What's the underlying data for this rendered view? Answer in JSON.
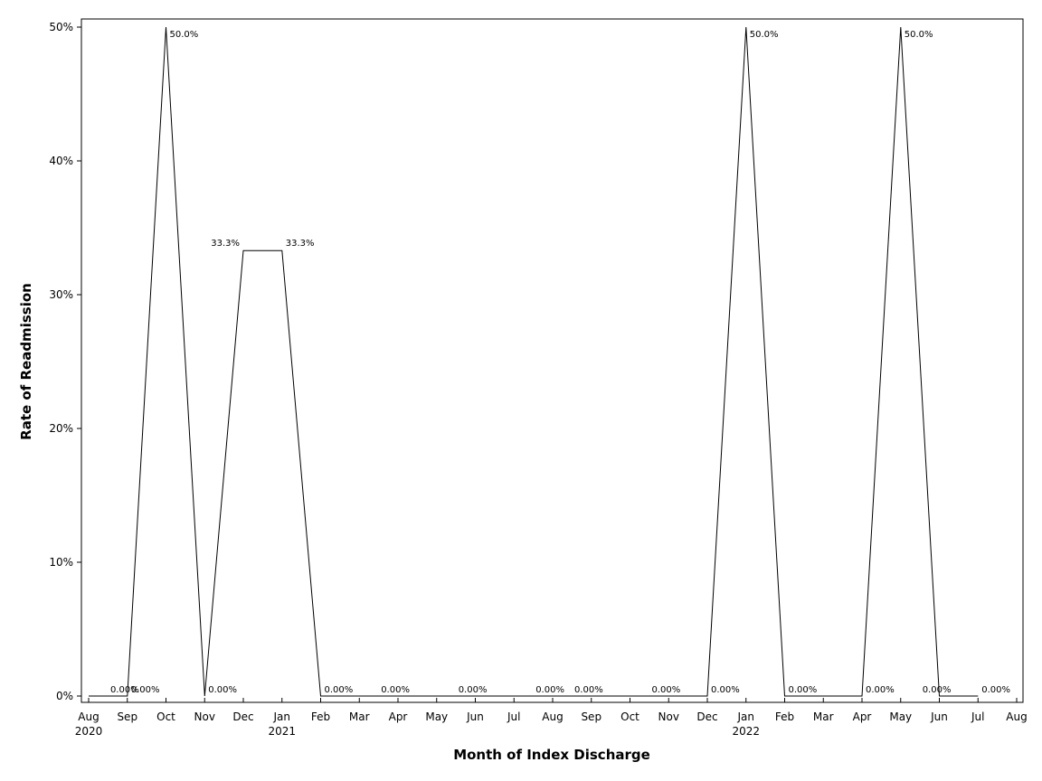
{
  "chart_data": {
    "type": "line",
    "title": "",
    "xlabel": "Month of Index Discharge",
    "ylabel": "Rate of Readmission",
    "ylim": [
      0,
      50
    ],
    "grid": false,
    "legend": "none",
    "line_color": "#000000",
    "x": [
      "2020-08",
      "2020-09",
      "2020-10",
      "2020-11",
      "2020-12",
      "2021-01",
      "2021-02",
      "2021-03",
      "2021-04",
      "2021-05",
      "2021-06",
      "2021-07",
      "2021-08",
      "2021-09",
      "2021-10",
      "2021-11",
      "2021-12",
      "2022-01",
      "2022-02",
      "2022-03",
      "2022-04",
      "2022-05",
      "2022-06",
      "2022-07"
    ],
    "values": [
      0,
      0,
      50,
      0,
      33.3,
      33.3,
      0,
      0,
      0,
      0,
      0,
      0,
      0,
      0,
      0,
      0,
      0,
      50,
      0,
      0,
      0,
      50,
      0,
      0
    ],
    "data_labels": [
      {
        "x": "2020-08-15",
        "value": 0,
        "text": "0.00%"
      },
      {
        "x": "2020-09-01",
        "value": 0,
        "text": "0.00%"
      },
      {
        "x": "2020-10-01",
        "value": 50,
        "text": "50.0%"
      },
      {
        "x": "2020-11-01",
        "value": 0,
        "text": "0.00%"
      },
      {
        "x": "2020-12-01",
        "value": 33.3,
        "text": "33.3%"
      },
      {
        "x": "2021-01-01",
        "value": 33.3,
        "text": "33.3%"
      },
      {
        "x": "2021-02-01",
        "value": 0,
        "text": "0.00%"
      },
      {
        "x": "2021-03-15",
        "value": 0,
        "text": "0.00%"
      },
      {
        "x": "2021-05-15",
        "value": 0,
        "text": "0.00%"
      },
      {
        "x": "2021-07-15",
        "value": 0,
        "text": "0.00%"
      },
      {
        "x": "2021-08-15",
        "value": 0,
        "text": "0.00%"
      },
      {
        "x": "2021-10-15",
        "value": 0,
        "text": "0.00%"
      },
      {
        "x": "2021-12-01",
        "value": 0,
        "text": "0.00%"
      },
      {
        "x": "2022-01-01",
        "value": 50,
        "text": "50.0%"
      },
      {
        "x": "2022-02-01",
        "value": 0,
        "text": "0.00%"
      },
      {
        "x": "2022-04-01",
        "value": 0,
        "text": "0.00%"
      },
      {
        "x": "2022-05-01",
        "value": 50,
        "text": "50.0%"
      },
      {
        "x": "2022-05-15",
        "value": 0,
        "text": "0.00%"
      },
      {
        "x": "2022-07-01",
        "value": 0,
        "text": "0.00%"
      }
    ],
    "y_ticks": [
      {
        "value": 0,
        "label": "0%"
      },
      {
        "value": 10,
        "label": "10%"
      },
      {
        "value": 20,
        "label": "20%"
      },
      {
        "value": 30,
        "label": "30%"
      },
      {
        "value": 40,
        "label": "40%"
      },
      {
        "value": 50,
        "label": "50%"
      }
    ],
    "x_ticks": [
      {
        "x": "2020-08",
        "label": "Aug",
        "year": "2020"
      },
      {
        "x": "2020-09",
        "label": "Sep"
      },
      {
        "x": "2020-10",
        "label": "Oct"
      },
      {
        "x": "2020-11",
        "label": "Nov"
      },
      {
        "x": "2020-12",
        "label": "Dec"
      },
      {
        "x": "2021-01",
        "label": "Jan",
        "year": "2021"
      },
      {
        "x": "2021-02",
        "label": "Feb"
      },
      {
        "x": "2021-03",
        "label": "Mar"
      },
      {
        "x": "2021-04",
        "label": "Apr"
      },
      {
        "x": "2021-05",
        "label": "May"
      },
      {
        "x": "2021-06",
        "label": "Jun"
      },
      {
        "x": "2021-07",
        "label": "Jul"
      },
      {
        "x": "2021-08",
        "label": "Aug"
      },
      {
        "x": "2021-09",
        "label": "Sep"
      },
      {
        "x": "2021-10",
        "label": "Oct"
      },
      {
        "x": "2021-11",
        "label": "Nov"
      },
      {
        "x": "2021-12",
        "label": "Dec"
      },
      {
        "x": "2022-01",
        "label": "Jan",
        "year": "2022"
      },
      {
        "x": "2022-02",
        "label": "Feb"
      },
      {
        "x": "2022-03",
        "label": "Mar"
      },
      {
        "x": "2022-04",
        "label": "Apr"
      },
      {
        "x": "2022-05",
        "label": "May"
      },
      {
        "x": "2022-06",
        "label": "Jun"
      },
      {
        "x": "2022-07",
        "label": "Jul"
      },
      {
        "x": "2022-08",
        "label": "Aug"
      }
    ]
  }
}
